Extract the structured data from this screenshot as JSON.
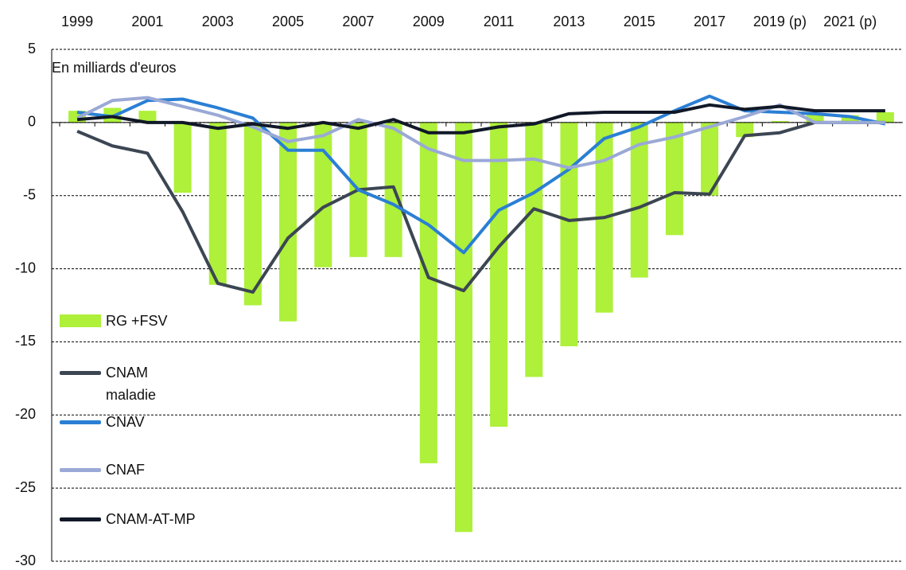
{
  "chart_data": {
    "type": "combo",
    "annotation": "En milliards d'euros",
    "categories": [
      "1999",
      null,
      "2001",
      null,
      "2003",
      null,
      "2005",
      null,
      "2007",
      null,
      "2009",
      null,
      "2011",
      null,
      "2013",
      null,
      "2015",
      null,
      "2017",
      null,
      "2019 (p)",
      null,
      "2021 (p)",
      null
    ],
    "ylim": [
      -30,
      5
    ],
    "yticks": [
      -30,
      -25,
      -20,
      -15,
      -10,
      -5,
      0,
      5
    ],
    "grid": true,
    "series": [
      {
        "name": "RG +FSV",
        "type": "bar",
        "color": "#aef03a",
        "values": [
          0.8,
          1.0,
          0.8,
          -4.8,
          -11.1,
          -12.5,
          -13.6,
          -9.9,
          -9.2,
          -9.2,
          -23.3,
          -28.0,
          -20.8,
          -17.4,
          -15.3,
          -13.0,
          -10.6,
          -7.7,
          -5.0,
          -1.0,
          0.1,
          0.6,
          0.5,
          0.7
        ]
      },
      {
        "name": "CNAM maladie",
        "type": "line",
        "color": "#3c4653",
        "values": [
          -0.6,
          -1.6,
          -2.1,
          -6.1,
          -11.0,
          -11.6,
          -7.9,
          -5.8,
          -4.6,
          -4.4,
          -10.6,
          -11.5,
          -8.5,
          -5.9,
          -6.7,
          -6.5,
          -5.8,
          -4.8,
          -4.9,
          -0.9,
          -0.7,
          0.0,
          0.0,
          0.0
        ]
      },
      {
        "name": "CNAV",
        "type": "line",
        "color": "#2a7fd4",
        "values": [
          0.7,
          0.4,
          1.5,
          1.6,
          1.0,
          0.3,
          -1.9,
          -1.9,
          -4.6,
          -5.6,
          -7.0,
          -8.9,
          -6.0,
          -4.8,
          -3.2,
          -1.1,
          -0.3,
          0.8,
          1.8,
          0.8,
          0.7,
          0.6,
          0.4,
          -0.1
        ]
      },
      {
        "name": "CNAF",
        "type": "line",
        "color": "#9aa9d6",
        "values": [
          0.3,
          1.5,
          1.7,
          1.1,
          0.5,
          -0.3,
          -1.3,
          -0.9,
          0.2,
          -0.4,
          -1.8,
          -2.6,
          -2.6,
          -2.5,
          -3.1,
          -2.6,
          -1.5,
          -1.0,
          -0.3,
          0.4,
          1.2,
          0.0,
          0.0,
          0.0
        ]
      },
      {
        "name": "CNAM-AT-MP",
        "type": "line",
        "color": "#111827",
        "values": [
          0.2,
          0.4,
          0.0,
          0.0,
          -0.4,
          -0.1,
          -0.4,
          0.0,
          -0.4,
          0.2,
          -0.7,
          -0.7,
          -0.3,
          -0.1,
          0.6,
          0.7,
          0.7,
          0.7,
          1.2,
          0.9,
          1.1,
          0.8,
          0.8,
          0.8
        ]
      }
    ]
  }
}
